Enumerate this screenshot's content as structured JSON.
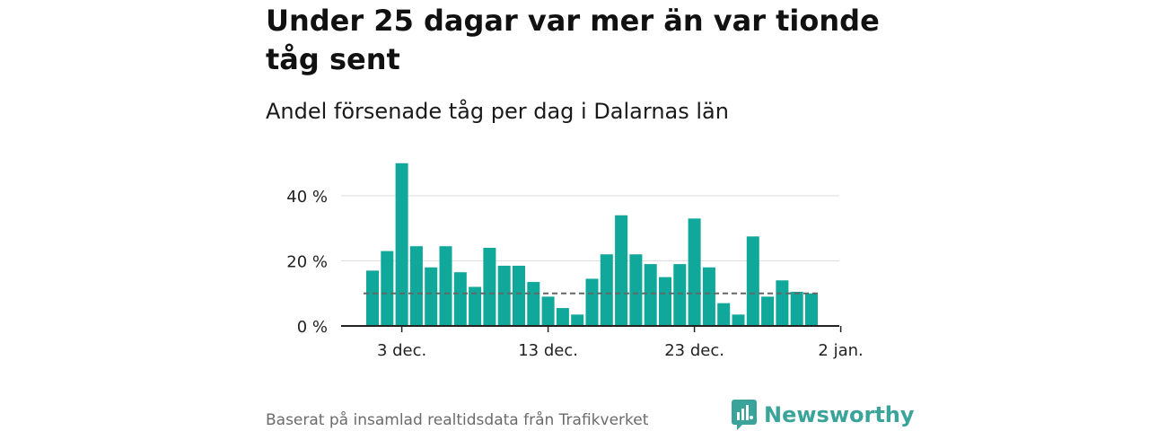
{
  "title": "Under 25 dagar var mer än var tionde tåg sent",
  "subtitle": "Andel försenade tåg per dag i Dalarnas län",
  "footer": "Baserat på insamlad realtidsdata från Trafikverket",
  "brand": "Newsworthy",
  "colors": {
    "bar": "#0fa89a",
    "reference": "#666666",
    "brand": "#3aa49a",
    "grid": "#dddddd"
  },
  "chart_data": {
    "type": "bar",
    "x": [
      "2023-12-01",
      "2023-12-02",
      "2023-12-03",
      "2023-12-04",
      "2023-12-05",
      "2023-12-06",
      "2023-12-07",
      "2023-12-08",
      "2023-12-09",
      "2023-12-10",
      "2023-12-11",
      "2023-12-12",
      "2023-12-13",
      "2023-12-14",
      "2023-12-15",
      "2023-12-16",
      "2023-12-17",
      "2023-12-18",
      "2023-12-19",
      "2023-12-20",
      "2023-12-21",
      "2023-12-22",
      "2023-12-23",
      "2023-12-24",
      "2023-12-25",
      "2023-12-26",
      "2023-12-27",
      "2023-12-28",
      "2023-12-29",
      "2023-12-30",
      "2023-12-31"
    ],
    "values": [
      17,
      23,
      50,
      24.5,
      18,
      24.5,
      16.5,
      12,
      24,
      18.5,
      18.5,
      13.5,
      9,
      5.5,
      3.5,
      14.5,
      22,
      34,
      22,
      19,
      15,
      19,
      33,
      18,
      7,
      3.5,
      27.5,
      9,
      14,
      10.5,
      10
    ],
    "reference_line": 10,
    "ylim": [
      0,
      52
    ],
    "yticks": [
      0,
      20,
      40
    ],
    "ytick_labels": [
      "0 %",
      "20 %",
      "40 %"
    ],
    "xticks": [
      "2023-12-03",
      "2023-12-13",
      "2023-12-23",
      "2024-01-02"
    ],
    "xtick_labels": [
      "3 dec.",
      "13 dec.",
      "23 dec.",
      "2 jan."
    ],
    "grid": true
  }
}
